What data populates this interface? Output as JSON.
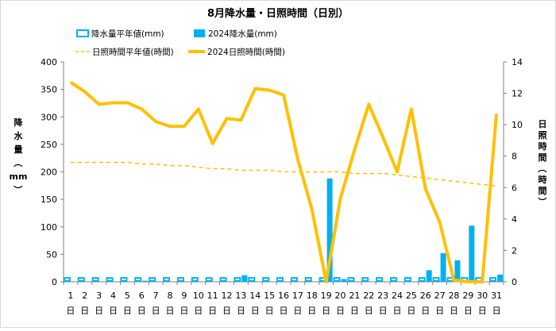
{
  "chart_data": {
    "type": "bar+line",
    "title": "8月降水量・日照時間（日別）",
    "categories": [
      "1",
      "2",
      "3",
      "4",
      "5",
      "6",
      "7",
      "8",
      "9",
      "10",
      "11",
      "12",
      "13",
      "14",
      "15",
      "16",
      "17",
      "18",
      "19",
      "20",
      "21",
      "22",
      "23",
      "24",
      "25",
      "26",
      "27",
      "28",
      "29",
      "30",
      "31"
    ],
    "category_suffix": "日",
    "left_axis": {
      "label_chars": [
        "降",
        "水",
        "量",
        "（",
        "mm",
        "）"
      ],
      "min": 0,
      "max": 400,
      "step": 50,
      "ticks": [
        "0",
        "50",
        "100",
        "150",
        "200",
        "250",
        "300",
        "350",
        "400"
      ]
    },
    "right_axis": {
      "label_chars": [
        "日",
        "照",
        "時",
        "間",
        "（",
        "時",
        "間",
        "）"
      ],
      "min": 0,
      "max": 14,
      "step": 2,
      "ticks": [
        "0",
        "2",
        "4",
        "6",
        "8",
        "10",
        "12",
        "14"
      ]
    },
    "legend": {
      "placement": "top",
      "items": [
        {
          "key": "rain_normal",
          "label": "降水量平年値(mm)"
        },
        {
          "key": "rain_2024",
          "label": "2024降水量(mm)"
        },
        {
          "key": "sun_normal",
          "label": "日照時間平年値(時間)"
        },
        {
          "key": "sun_2024",
          "label": "2024日照時間(時間)"
        }
      ]
    },
    "series": [
      {
        "name": "降水量平年値(mm)",
        "axis": "left",
        "kind": "bar-outline",
        "values": [
          7,
          7,
          7,
          7,
          7,
          7,
          7,
          7,
          7,
          7,
          7,
          7,
          7,
          7,
          7,
          7,
          7,
          7,
          7,
          7,
          7,
          7,
          7,
          7,
          7,
          7,
          7,
          7,
          7,
          7,
          7
        ]
      },
      {
        "name": "2024降水量(mm)",
        "axis": "left",
        "kind": "bar",
        "values": [
          0,
          0,
          0,
          0,
          0,
          2,
          0,
          0,
          0,
          0,
          0,
          0,
          12,
          0,
          0,
          0,
          0,
          0,
          188,
          5,
          0,
          0,
          0,
          0,
          0,
          21,
          52,
          39,
          102,
          0,
          13
        ]
      },
      {
        "name": "日照時間平年値(時間)",
        "axis": "right",
        "kind": "line-dashed",
        "values": [
          7.6,
          7.6,
          7.6,
          7.6,
          7.6,
          7.5,
          7.5,
          7.4,
          7.4,
          7.3,
          7.2,
          7.2,
          7.1,
          7.1,
          7.1,
          7.0,
          7.0,
          7.0,
          7.0,
          7.0,
          6.9,
          6.9,
          6.9,
          6.8,
          6.7,
          6.6,
          6.5,
          6.4,
          6.3,
          6.2,
          6.1
        ]
      },
      {
        "name": "2024日照時間(時間)",
        "axis": "right",
        "kind": "line",
        "values": [
          12.7,
          12.1,
          11.3,
          11.4,
          11.4,
          11.0,
          10.2,
          9.9,
          9.9,
          11.0,
          8.8,
          10.4,
          10.3,
          12.3,
          12.2,
          11.9,
          7.8,
          4.6,
          0.0,
          5.3,
          8.4,
          11.3,
          9.2,
          7.0,
          11.0,
          5.9,
          3.8,
          0.1,
          0.0,
          0.0,
          10.7
        ]
      }
    ],
    "colors": {
      "rain_normal": "#00B0F0",
      "rain_2024": "#00B0F0",
      "sun_normal": "#FFC000",
      "sun_2024": "#FFC000",
      "axis": "#7f7f7f",
      "text": "#000000"
    },
    "grid": false
  }
}
